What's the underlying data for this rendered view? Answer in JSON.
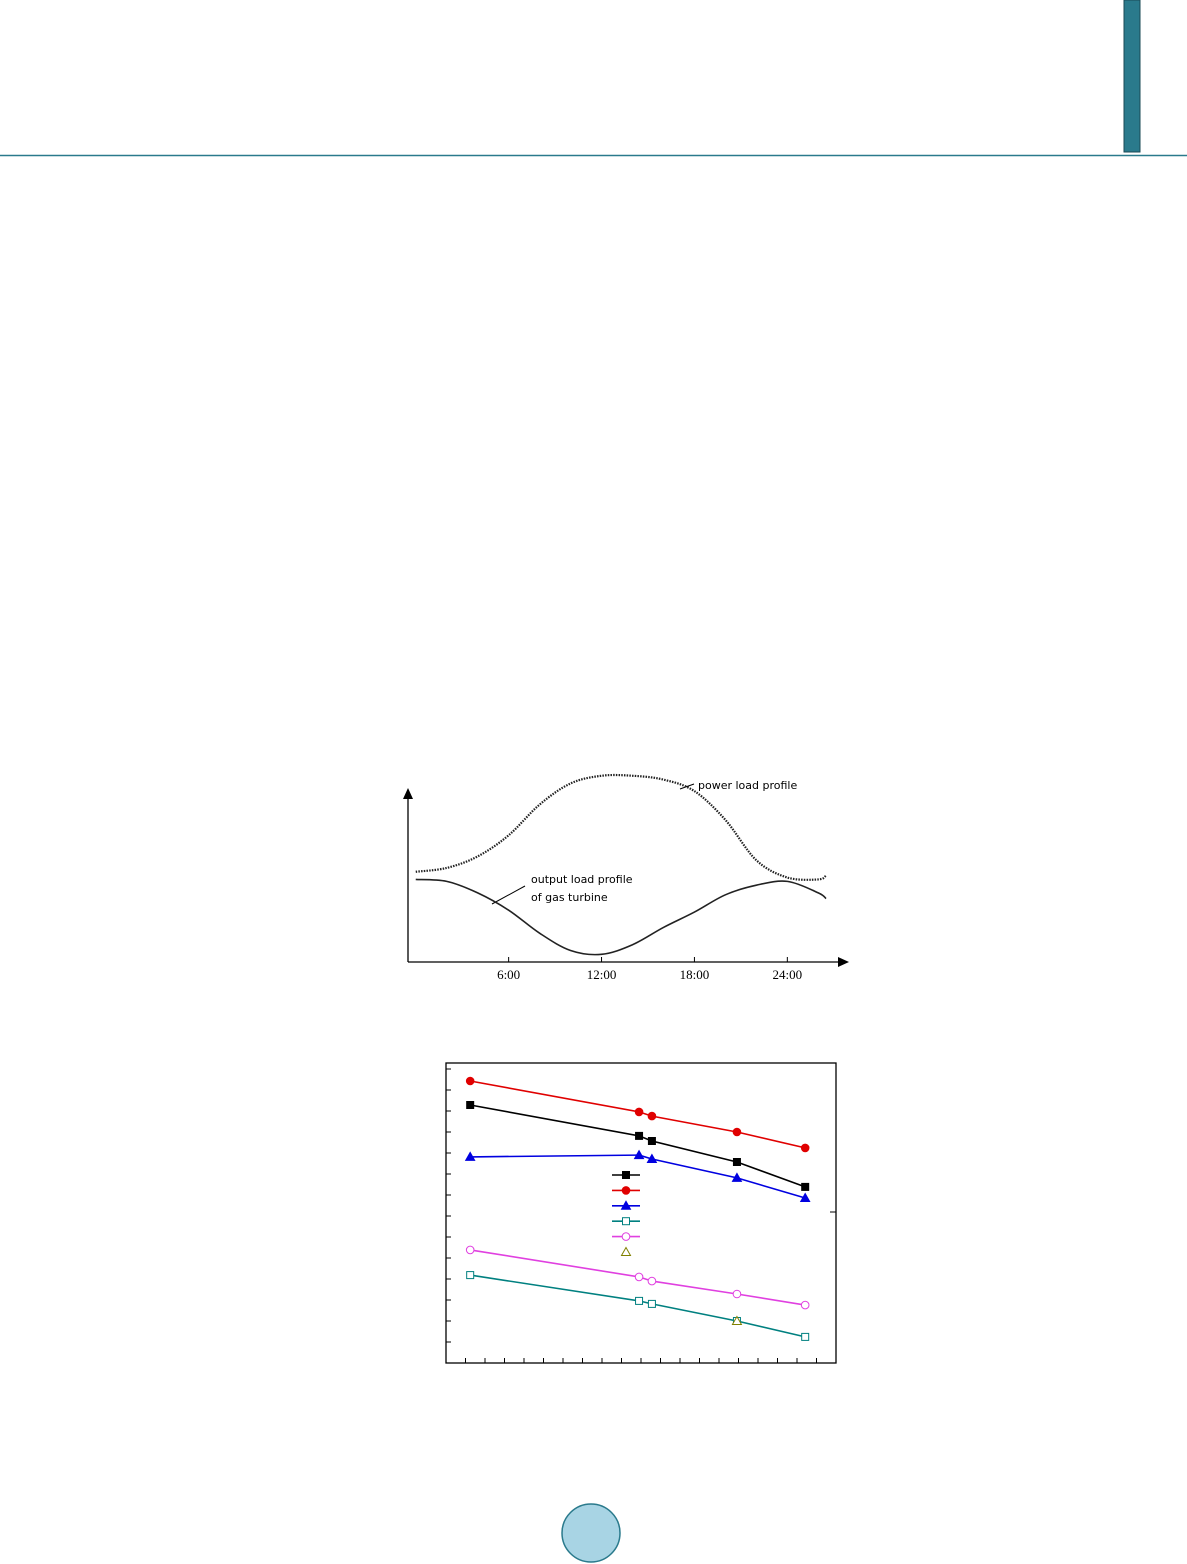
{
  "chart_data": [
    {
      "type": "line",
      "x": [
        0,
        2,
        4,
        6,
        8,
        10,
        12,
        14,
        16,
        18,
        20,
        22,
        24,
        26,
        26.5
      ],
      "series": [
        {
          "color": "#222222",
          "dashed": true,
          "values": [
            47,
            49,
            55,
            66,
            82,
            93,
            97,
            97,
            95,
            89,
            74,
            53,
            44,
            43,
            45
          ]
        },
        {
          "color": "#222222",
          "dashed": false,
          "values": [
            43,
            42,
            36,
            27,
            15,
            6,
            4,
            9,
            18,
            26,
            35,
            40,
            42,
            36,
            33
          ]
        }
      ],
      "annotations": [
        "power load profile",
        "output load profile",
        "of gas turbine"
      ],
      "xlim": [
        -0.5,
        28.5
      ],
      "ylim": [
        0,
        100
      ],
      "xticks": [
        {
          "value": 6,
          "label": "6:00"
        },
        {
          "value": 12,
          "label": "12:00"
        },
        {
          "value": 18,
          "label": "18:00"
        },
        {
          "value": 24,
          "label": "24:00"
        }
      ]
    },
    {
      "type": "line",
      "x": [
        6.2,
        49.5,
        52.8,
        74.6,
        92.1
      ],
      "series": [
        {
          "color": "#000000",
          "marker": "square",
          "filled": true,
          "line": true,
          "values": [
            86,
            75.7,
            74,
            67,
            58.7
          ]
        },
        {
          "color": "#e00000",
          "marker": "circle",
          "filled": true,
          "line": true,
          "values": [
            94,
            83.7,
            82.3,
            77,
            71.7
          ]
        },
        {
          "color": "#0000e0",
          "marker": "triangle",
          "filled": true,
          "line": true,
          "values": [
            68.7,
            69.3,
            68,
            61.7,
            55
          ]
        },
        {
          "color": "#008080",
          "marker": "square",
          "filled": false,
          "line": true,
          "values": [
            29.3,
            20.7,
            19.7,
            14,
            8.7
          ]
        },
        {
          "color": "#e040e0",
          "marker": "circle",
          "filled": false,
          "line": true,
          "values": [
            37.7,
            28.7,
            27.3,
            23,
            19.3
          ]
        },
        {
          "color": "#808000",
          "marker": "triangle",
          "filled": false,
          "line": false,
          "values": [
            null,
            null,
            null,
            14,
            null
          ]
        }
      ],
      "xlim": [
        0,
        100
      ],
      "ylim": [
        0,
        100
      ],
      "xticks": [
        0,
        5,
        10,
        15,
        20,
        25,
        30,
        35,
        40,
        45,
        50,
        55,
        60,
        65,
        70,
        75,
        80,
        85,
        90,
        95,
        100
      ],
      "yticks": [
        0,
        7,
        14,
        21,
        28,
        35,
        42,
        49,
        56,
        63,
        70,
        77,
        84,
        91,
        98
      ]
    }
  ]
}
